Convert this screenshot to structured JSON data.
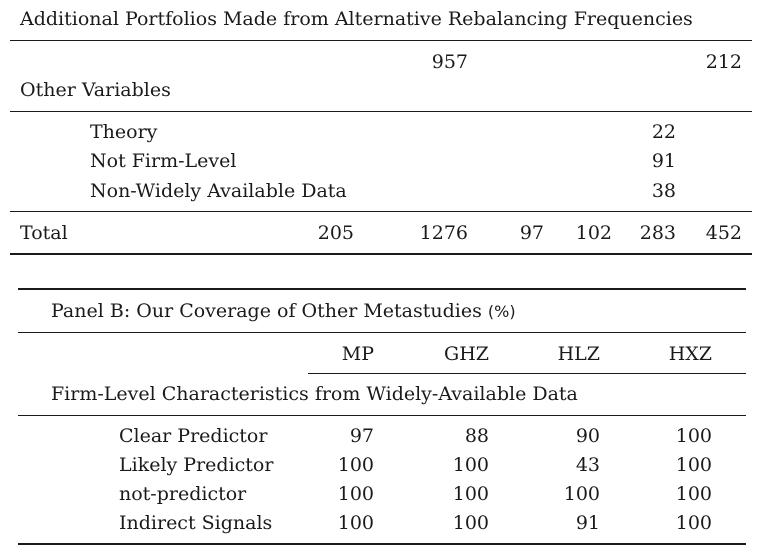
{
  "panel_a": {
    "section_title": "Additional Portfolios Made from Alternative Rebalancing Frequencies",
    "section_values": [
      "957",
      "212"
    ],
    "other_variables": {
      "heading": "Other Variables",
      "rows": [
        {
          "label": "Theory",
          "value": "22"
        },
        {
          "label": "Not Firm-Level",
          "value": "91"
        },
        {
          "label": "Non-Widely Available Data",
          "value": "38"
        }
      ]
    },
    "total": {
      "label": "Total",
      "values": [
        "205",
        "1276",
        "97",
        "102",
        "283",
        "452"
      ]
    }
  },
  "panel_b": {
    "title": "Panel B: Our Coverage of Other Metastudies",
    "title_unit": "(%)",
    "columns": [
      "MP",
      "GHZ",
      "HLZ",
      "HXZ"
    ],
    "group_heading": "Firm-Level Characteristics from Widely-Available Data",
    "rows": [
      {
        "label": "Clear Predictor",
        "values": [
          "97",
          "88",
          "90",
          "100"
        ]
      },
      {
        "label": "Likely Predictor",
        "values": [
          "100",
          "100",
          "43",
          "100"
        ]
      },
      {
        "label": "not-predictor",
        "values": [
          "100",
          "100",
          "100",
          "100"
        ]
      },
      {
        "label": "Indirect Signals",
        "values": [
          "100",
          "100",
          "91",
          "100"
        ]
      }
    ]
  }
}
